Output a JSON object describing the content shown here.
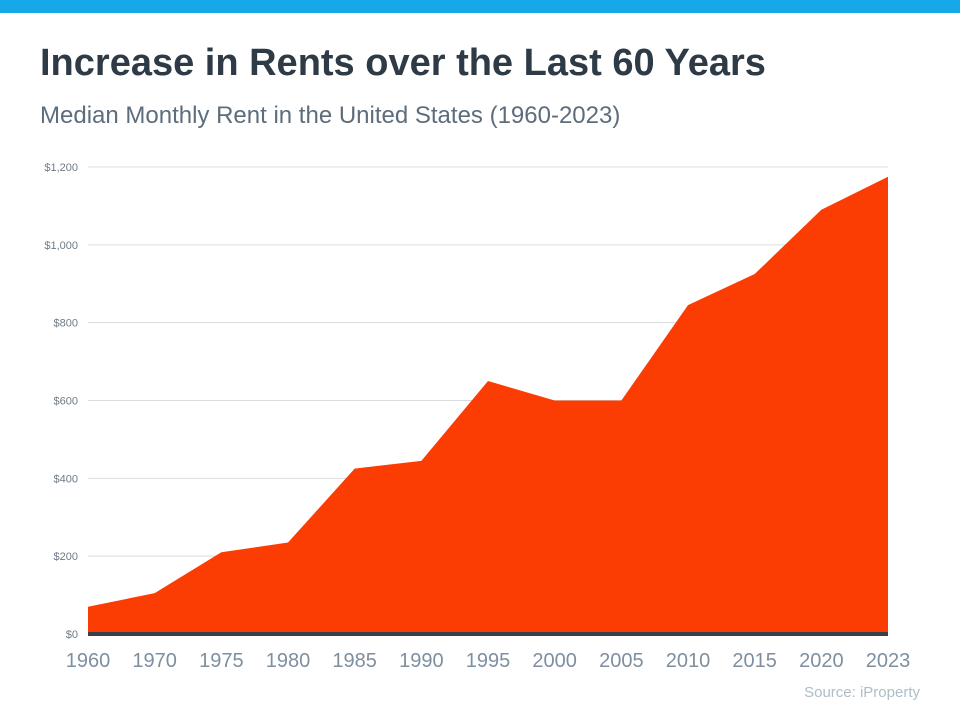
{
  "top_bar": {
    "color": "#17A8E8"
  },
  "header": {
    "title": "Increase in Rents over the Last 60 Years",
    "subtitle": "Median Monthly Rent in the United States (1960-2023)"
  },
  "chart_data": {
    "type": "area",
    "title": "Increase in Rents over the Last 60 Years",
    "subtitle": "Median Monthly Rent in the United States (1960-2023)",
    "categories": [
      "1960",
      "1970",
      "1975",
      "1980",
      "1985",
      "1990",
      "1995",
      "2000",
      "2005",
      "2010",
      "2015",
      "2020",
      "2023"
    ],
    "values": [
      70,
      105,
      210,
      235,
      425,
      445,
      650,
      600,
      600,
      845,
      925,
      1090,
      1175
    ],
    "xlabel": "",
    "ylabel": "",
    "ylim": [
      0,
      1200
    ],
    "ytick_step": 200,
    "ytick_labels": [
      "$0",
      "$200",
      "$400",
      "$600",
      "$800",
      "$1,000",
      "$1,200"
    ],
    "grid": true,
    "legend": "none",
    "fill_color": "#FC3D03",
    "baseline_color": "#39404A",
    "gridline_color": "#D9DCDF",
    "ytick_color": "#6E7B87",
    "xtick_color": "#7E8FA0"
  },
  "footer": {
    "source": "Source: iProperty"
  }
}
